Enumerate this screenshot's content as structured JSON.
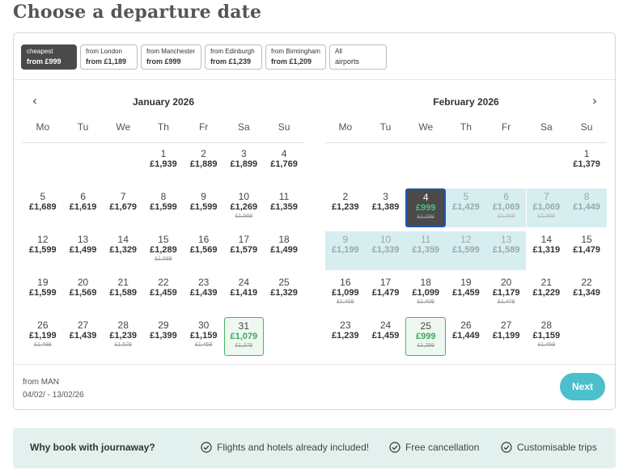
{
  "page_title": "Choose a departure date",
  "filters": [
    {
      "top": "cheapest",
      "bottom": "from £999",
      "active": true
    },
    {
      "top": "from London",
      "bottom": "from £1,189",
      "active": false
    },
    {
      "top": "from Manchester",
      "bottom": "from £999",
      "active": false
    },
    {
      "top": "from Edinburgh",
      "bottom": "from £1,239",
      "active": false
    },
    {
      "top": "from Birmingham",
      "bottom": "from £1,209",
      "active": false
    },
    {
      "top": "All",
      "bottom": "airports",
      "active": false
    }
  ],
  "nav": {
    "prev_icon": "chevron-left-icon",
    "next_icon": "chevron-right-icon"
  },
  "weekdays": [
    "Mo",
    "Tu",
    "We",
    "Th",
    "Fr",
    "Sa",
    "Su"
  ],
  "months": [
    {
      "title": "January 2026",
      "days": [
        {
          "day": "1",
          "price": "£1,939",
          "col": 3,
          "row": 0
        },
        {
          "day": "2",
          "price": "£1,889",
          "col": 4,
          "row": 0
        },
        {
          "day": "3",
          "price": "£1,899",
          "col": 5,
          "row": 0
        },
        {
          "day": "4",
          "price": "£1,769",
          "col": 6,
          "row": 0
        },
        {
          "day": "5",
          "price": "£1,689",
          "col": 0,
          "row": 1
        },
        {
          "day": "6",
          "price": "£1,619",
          "col": 1,
          "row": 1
        },
        {
          "day": "7",
          "price": "£1,679",
          "col": 2,
          "row": 1
        },
        {
          "day": "8",
          "price": "£1,599",
          "col": 3,
          "row": 1
        },
        {
          "day": "9",
          "price": "£1,599",
          "col": 4,
          "row": 1
        },
        {
          "day": "10",
          "price": "£1,269",
          "old": "£1,569",
          "col": 5,
          "row": 1
        },
        {
          "day": "11",
          "price": "£1,359",
          "col": 6,
          "row": 1
        },
        {
          "day": "12",
          "price": "£1,599",
          "col": 0,
          "row": 2
        },
        {
          "day": "13",
          "price": "£1,499",
          "col": 1,
          "row": 2
        },
        {
          "day": "14",
          "price": "£1,329",
          "col": 2,
          "row": 2
        },
        {
          "day": "15",
          "price": "£1,289",
          "old": "£1,589",
          "col": 3,
          "row": 2
        },
        {
          "day": "16",
          "price": "£1,569",
          "col": 4,
          "row": 2
        },
        {
          "day": "17",
          "price": "£1,579",
          "col": 5,
          "row": 2
        },
        {
          "day": "18",
          "price": "£1,499",
          "col": 6,
          "row": 2
        },
        {
          "day": "19",
          "price": "£1,599",
          "col": 0,
          "row": 3
        },
        {
          "day": "20",
          "price": "£1,569",
          "col": 1,
          "row": 3
        },
        {
          "day": "21",
          "price": "£1,589",
          "col": 2,
          "row": 3
        },
        {
          "day": "22",
          "price": "£1,459",
          "col": 3,
          "row": 3
        },
        {
          "day": "23",
          "price": "£1,439",
          "col": 4,
          "row": 3
        },
        {
          "day": "24",
          "price": "£1,419",
          "col": 5,
          "row": 3
        },
        {
          "day": "25",
          "price": "£1,329",
          "col": 6,
          "row": 3
        },
        {
          "day": "26",
          "price": "£1,199",
          "old": "£1,499",
          "col": 0,
          "row": 4
        },
        {
          "day": "27",
          "price": "£1,439",
          "col": 1,
          "row": 4
        },
        {
          "day": "28",
          "price": "£1,239",
          "old": "£1,529",
          "col": 2,
          "row": 4
        },
        {
          "day": "29",
          "price": "£1,399",
          "col": 3,
          "row": 4
        },
        {
          "day": "30",
          "price": "£1,159",
          "old": "£1,459",
          "col": 4,
          "row": 4
        },
        {
          "day": "31",
          "price": "£1,079",
          "old": "£1,379",
          "col": 5,
          "row": 4,
          "state": "best"
        }
      ]
    },
    {
      "title": "February 2026",
      "days": [
        {
          "day": "1",
          "price": "£1,379",
          "col": 6,
          "row": 0
        },
        {
          "day": "2",
          "price": "£1,239",
          "col": 0,
          "row": 1
        },
        {
          "day": "3",
          "price": "£1,389",
          "col": 1,
          "row": 1
        },
        {
          "day": "4",
          "price": "£999",
          "old": "£1,299",
          "col": 2,
          "row": 1,
          "state": "selected"
        },
        {
          "day": "5",
          "price": "£1,429",
          "col": 3,
          "row": 1,
          "state": "range"
        },
        {
          "day": "6",
          "price": "£1,069",
          "old": "£1,369",
          "col": 4,
          "row": 1,
          "state": "range"
        },
        {
          "day": "7",
          "price": "£1,069",
          "old": "£1,369",
          "col": 5,
          "row": 1,
          "state": "range"
        },
        {
          "day": "8",
          "price": "£1,449",
          "col": 6,
          "row": 1,
          "state": "range"
        },
        {
          "day": "9",
          "price": "£1,199",
          "col": 0,
          "row": 2,
          "state": "range"
        },
        {
          "day": "10",
          "price": "£1,339",
          "col": 1,
          "row": 2,
          "state": "range"
        },
        {
          "day": "11",
          "price": "£1,359",
          "col": 2,
          "row": 2,
          "state": "range"
        },
        {
          "day": "12",
          "price": "£1,599",
          "col": 3,
          "row": 2,
          "state": "range"
        },
        {
          "day": "13",
          "price": "£1,589",
          "col": 4,
          "row": 2,
          "state": "range"
        },
        {
          "day": "14",
          "price": "£1,319",
          "col": 5,
          "row": 2
        },
        {
          "day": "15",
          "price": "£1,479",
          "col": 6,
          "row": 2
        },
        {
          "day": "16",
          "price": "£1,099",
          "old": "£1,409",
          "col": 0,
          "row": 3
        },
        {
          "day": "17",
          "price": "£1,479",
          "col": 1,
          "row": 3
        },
        {
          "day": "18",
          "price": "£1,099",
          "old": "£1,409",
          "col": 2,
          "row": 3
        },
        {
          "day": "19",
          "price": "£1,459",
          "col": 3,
          "row": 3
        },
        {
          "day": "20",
          "price": "£1,179",
          "old": "£1,479",
          "col": 4,
          "row": 3
        },
        {
          "day": "21",
          "price": "£1,229",
          "col": 5,
          "row": 3
        },
        {
          "day": "22",
          "price": "£1,349",
          "col": 6,
          "row": 3
        },
        {
          "day": "23",
          "price": "£1,239",
          "col": 0,
          "row": 4
        },
        {
          "day": "24",
          "price": "£1,459",
          "col": 1,
          "row": 4
        },
        {
          "day": "25",
          "price": "£999",
          "old": "£1,299",
          "col": 2,
          "row": 4,
          "state": "best"
        },
        {
          "day": "26",
          "price": "£1,449",
          "col": 3,
          "row": 4
        },
        {
          "day": "27",
          "price": "£1,199",
          "col": 4,
          "row": 4
        },
        {
          "day": "28",
          "price": "£1,159",
          "old": "£1,459",
          "col": 5,
          "row": 4
        }
      ]
    }
  ],
  "route": {
    "from": "from MAN",
    "dates": "04/02/ - 13/02/26"
  },
  "next_label": "Next",
  "why": {
    "title": "Why book with journaway?",
    "items": [
      "Flights and hotels already included!",
      "Free cancellation",
      "Customisable trips"
    ],
    "check_icon": "check-circle-icon"
  },
  "colors": {
    "accent": "#4bbfcc",
    "selected": "#4a4a4a",
    "best": "#3aa95b",
    "range": "#d7eef1"
  }
}
